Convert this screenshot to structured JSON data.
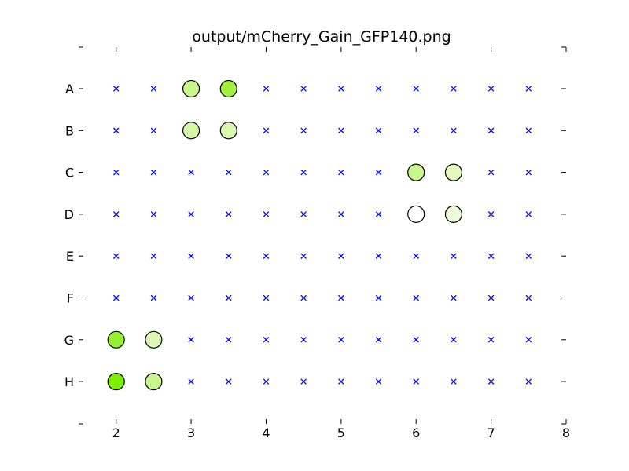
{
  "chart_data": {
    "type": "scatter",
    "title": "output/mCherry_Gain_GFP140.png",
    "xlabel": "",
    "ylabel": "",
    "xlim": [
      1.5,
      8
    ],
    "x_ticks": [
      2,
      3,
      4,
      5,
      6,
      7,
      8
    ],
    "x_tick_labels": [
      "2",
      "3",
      "4",
      "5",
      "6",
      "7",
      "8"
    ],
    "rows": [
      "A",
      "B",
      "C",
      "D",
      "E",
      "F",
      "G",
      "H"
    ],
    "columns_x": [
      2,
      2.5,
      3,
      3.5,
      4,
      4.5,
      5,
      5.5,
      6,
      6.5,
      7,
      7.5
    ],
    "empty_marker": {
      "symbol": "x",
      "color": "#0000ff"
    },
    "grid": false,
    "legend": "none",
    "points": [
      {
        "row": "A",
        "x": 3,
        "color": "#c8f58c"
      },
      {
        "row": "A",
        "x": 3.5,
        "color": "#a0f03c"
      },
      {
        "row": "B",
        "x": 3,
        "color": "#d6f7a8"
      },
      {
        "row": "B",
        "x": 3.5,
        "color": "#d9f8ae"
      },
      {
        "row": "C",
        "x": 6,
        "color": "#c8f58c"
      },
      {
        "row": "C",
        "x": 6.5,
        "color": "#e2fac0"
      },
      {
        "row": "D",
        "x": 6,
        "color": "#ffffff"
      },
      {
        "row": "D",
        "x": 6.5,
        "color": "#ecfcd8"
      },
      {
        "row": "G",
        "x": 2,
        "color": "#96f032"
      },
      {
        "row": "G",
        "x": 2.5,
        "color": "#dcf8b4"
      },
      {
        "row": "H",
        "x": 2,
        "color": "#7cf000"
      },
      {
        "row": "H",
        "x": 2.5,
        "color": "#c8f58c"
      }
    ]
  }
}
